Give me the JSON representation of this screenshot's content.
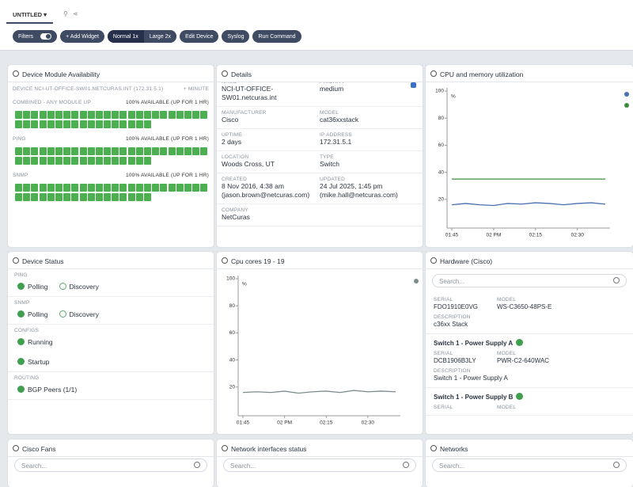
{
  "tab": {
    "title": "UNTITLED"
  },
  "toolbar": {
    "filters": "Filters",
    "add_widget": "+ Add Widget",
    "normal": "Normal 1x",
    "large": "Large 2x",
    "edit_device": "Edit Device",
    "syslog": "Syslog",
    "run_command": "Run Command"
  },
  "module_availability": {
    "title": "Device Module Availability",
    "device": "DEVICE NCI-UT-OFFICE-SW01.NETCURAS.INT (172.31.5.1)",
    "interval": "+ MINUTE",
    "rows": [
      {
        "label": "COMBINED - ANY MODULE UP",
        "status": "100% AVAILABLE (UP FOR 1 HR)"
      },
      {
        "label": "PING",
        "status": "100% AVAILABLE (UP FOR 1 HR)"
      },
      {
        "label": "SNMP",
        "status": "100% AVAILABLE (UP FOR 1 HR)"
      }
    ]
  },
  "details": {
    "title": "Details",
    "rows": [
      [
        {
          "label": "NAME",
          "value": "NCI-UT-OFFICE-SW01.netcuras.int"
        },
        {
          "label": "PRIORITY",
          "value": "medium"
        }
      ],
      [
        {
          "label": "MANUFACTURER",
          "value": "Cisco"
        },
        {
          "label": "MODEL",
          "value": "cat36xxstack"
        }
      ],
      [
        {
          "label": "UPTIME",
          "value": "2 days"
        },
        {
          "label": "IP ADDRESS",
          "value": "172.31.5.1"
        }
      ],
      [
        {
          "label": "LOCATION",
          "value": "Woods Cross, UT"
        },
        {
          "label": "TYPE",
          "value": "Switch"
        }
      ],
      [
        {
          "label": "CREATED",
          "value": "8 Nov 2016, 4:38 am",
          "by": "(jason.brown@netcuras.com)"
        },
        {
          "label": "UPDATED",
          "value": "24 Jul 2025, 1:45 pm",
          "by": "(mike.hall@netcuras.com)"
        }
      ],
      [
        {
          "label": "COMPANY",
          "value": "NetCuras"
        }
      ]
    ]
  },
  "device_status": {
    "title": "Device Status",
    "groups": [
      {
        "label": "PING",
        "items": [
          {
            "label": "Polling",
            "icon": "check"
          },
          {
            "label": "Discovery",
            "icon": "clock"
          }
        ]
      },
      {
        "label": "SNMP",
        "items": [
          {
            "label": "Polling",
            "icon": "check"
          },
          {
            "label": "Discovery",
            "icon": "clock"
          }
        ]
      },
      {
        "label": "CONFIGS",
        "items": [
          {
            "label": "Running",
            "icon": "check"
          },
          {
            "label": "Startup",
            "icon": "check"
          }
        ]
      },
      {
        "label": "ROUTING",
        "items": [
          {
            "label": "BGP Peers (1/1)",
            "icon": "check"
          }
        ]
      }
    ]
  },
  "hardware": {
    "title": "Hardware (Cisco)",
    "search": "Search...",
    "entries": [
      {
        "serial_label": "SERIAL",
        "serial": "FDO1910E0VG",
        "model_label": "MODEL",
        "model": "WS-C3650-48PS-E",
        "description_label": "DESCRIPTION",
        "description": "c36xx Stack"
      },
      {
        "heading": "Switch 1 - Power Supply A",
        "serial_label": "SERIAL",
        "serial": "DCB1906B3LY",
        "model_label": "MODEL",
        "model": "PWR-C2-640WAC",
        "description_label": "DESCRIPTION",
        "description": "Switch 1 - Power Supply A"
      },
      {
        "heading": "Switch 1 - Power Supply B",
        "serial_label": "SERIAL",
        "model_label": "MODEL"
      }
    ]
  },
  "bottom_widgets": [
    {
      "title": "Cisco Fans",
      "search": "Search..."
    },
    {
      "title": "Network interfaces status",
      "search": "Search..."
    },
    {
      "title": "Networks",
      "search": "Search..."
    }
  ],
  "chart_data": [
    {
      "type": "line",
      "title": "CPU and memory utilization",
      "y_label": "%",
      "legend": "top-right",
      "categories": [
        "01:45",
        null,
        null,
        "02 PM",
        null,
        null,
        "02:15",
        null,
        null,
        "02:30",
        null,
        null
      ],
      "series": [
        {
          "color": "#4a6fae",
          "values": [
            16,
            17,
            16,
            15.5,
            17,
            16.5,
            17.5,
            17,
            16,
            17,
            17.5,
            16.5
          ]
        },
        {
          "color": "#3d8b3d",
          "values": [
            35,
            35,
            35,
            35,
            35,
            35,
            35,
            35,
            35,
            35,
            35,
            35
          ]
        }
      ],
      "ylim": [
        0,
        100
      ],
      "yticks": [
        20,
        40,
        60,
        80,
        100
      ]
    },
    {
      "type": "line",
      "title": "Cpu cores 19 - 19",
      "y_label": "%",
      "legend": "top-right",
      "categories": [
        "01:45",
        null,
        null,
        "02 PM",
        null,
        null,
        "02:15",
        null,
        null,
        "02:30",
        null,
        null
      ],
      "series": [
        {
          "color": "#7d8c8c",
          "values": [
            16,
            16.5,
            16,
            17,
            15.5,
            16.5,
            17,
            16,
            17.5,
            16.5,
            17,
            16.5
          ]
        }
      ],
      "ylim": [
        0,
        100
      ],
      "yticks": [
        20,
        40,
        60,
        80,
        100
      ]
    }
  ]
}
